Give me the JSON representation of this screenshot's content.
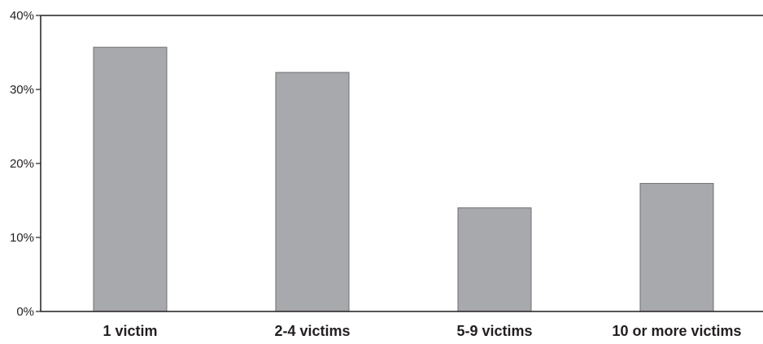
{
  "chart_data": {
    "type": "bar",
    "title": "",
    "xlabel": "",
    "ylabel": "",
    "categories": [
      "1 victim",
      "2-4 victims",
      "5-9 victims",
      "10 or more victims"
    ],
    "values": [
      35.7,
      32.3,
      14.0,
      17.3
    ],
    "ylim": [
      0,
      40
    ],
    "yticks": [
      0,
      10,
      20,
      30,
      40
    ],
    "ytick_labels": [
      "0%",
      "10%",
      "20%",
      "30%",
      "40%"
    ],
    "grid": false,
    "legend": "none",
    "colors": {
      "bar_fill": "#a7a9ac",
      "bar_stroke": "#6d6e71",
      "axis": "#231f20",
      "text": "#231f20"
    }
  }
}
